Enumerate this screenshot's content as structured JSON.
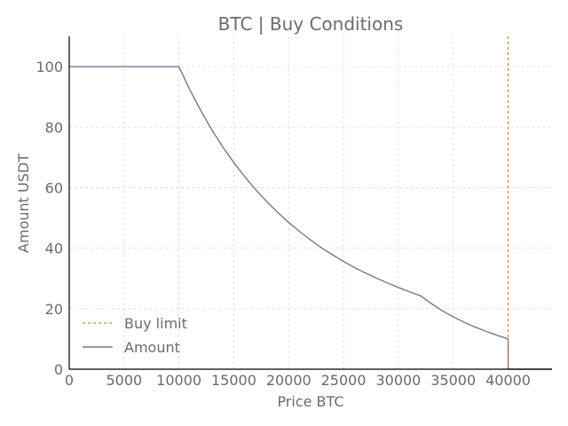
{
  "chart_data": {
    "type": "line",
    "title": "BTC | Buy Conditions",
    "xlabel": "Price BTC",
    "ylabel": "Amount USDT",
    "xlim": [
      0,
      44000
    ],
    "ylim": [
      0,
      110
    ],
    "xticks": [
      0,
      5000,
      10000,
      15000,
      20000,
      25000,
      30000,
      35000,
      40000
    ],
    "yticks": [
      0,
      20,
      40,
      60,
      80,
      100
    ],
    "grid": true,
    "legend_position": "bottom-left",
    "series": [
      {
        "name": "Amount",
        "style": "solid",
        "color": "#717a90",
        "x": [
          0,
          10000,
          11000,
          12000,
          13000,
          14000,
          15000,
          16000,
          17000,
          18000,
          19000,
          20000,
          21000,
          22000,
          23000,
          24000,
          25000,
          26000,
          27000,
          28000,
          29000,
          30000,
          31000,
          32000,
          33000,
          34000,
          35000,
          36000,
          37000,
          38000,
          39000,
          40000,
          40000,
          44000
        ],
        "y": [
          100,
          100,
          92.3,
          85.4,
          79.1,
          73.4,
          68.3,
          63.6,
          59.3,
          55.4,
          51.8,
          48.5,
          45.5,
          42.7,
          40.1,
          37.8,
          35.6,
          33.6,
          31.8,
          30.1,
          28.5,
          27.0,
          25.6,
          24.3,
          21.7,
          19.3,
          17.3,
          15.5,
          13.9,
          12.5,
          11.2,
          10.0,
          0,
          0
        ]
      },
      {
        "name": "Buy limit",
        "style": "dashed",
        "color": "#d2691e",
        "x": [
          40000,
          40000
        ],
        "y": [
          0,
          110
        ]
      }
    ]
  }
}
